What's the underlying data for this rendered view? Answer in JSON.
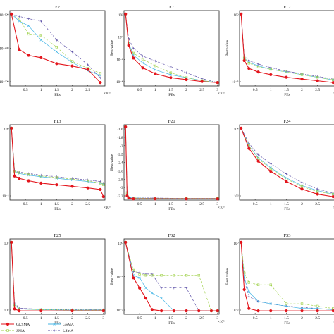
{
  "chart_data": [
    {
      "type": "line",
      "title": "F2",
      "xlabel": "FEs",
      "ylabel": "",
      "x_tick_labels": [
        "0.5",
        "1",
        "1.5",
        "2",
        "2.5"
      ],
      "x_exponent": "×10⁵",
      "y_tick_labels": [
        "10⁻¹⁰⁰",
        "10⁻²⁰⁰",
        "10⁻³⁰⁰"
      ],
      "y_log": true,
      "x": [
        0.05,
        0.3,
        0.6,
        1.0,
        1.5,
        2.0,
        2.5,
        2.9
      ],
      "series": [
        {
          "name": "GLSMA",
          "values": [
            -10,
            -160,
            -185,
            -195,
            -220,
            -230,
            -245,
            -300
          ]
        },
        {
          "name": "SMA",
          "values": [
            -10,
            -30,
            -95,
            -100,
            -150,
            -210,
            -240,
            -260
          ]
        },
        {
          "name": "GSMA",
          "values": [
            -10,
            -40,
            -60,
            -120,
            -170,
            -215,
            -250,
            -270
          ]
        },
        {
          "name": "LSMA",
          "values": [
            -10,
            -20,
            -30,
            -40,
            -120,
            -170,
            -225,
            -280
          ]
        }
      ]
    },
    {
      "type": "line",
      "title": "F7",
      "xlabel": "FEs",
      "ylabel": "Best value",
      "x_tick_labels": [
        "0.5",
        "1",
        "1.5",
        "2",
        "2.5",
        "3"
      ],
      "x_exponent": "×10⁵",
      "y_tick_labels": [
        "10²",
        "10⁰",
        "10⁻²",
        "10⁻⁴"
      ],
      "y_log": true,
      "x": [
        0.05,
        0.15,
        0.3,
        0.6,
        1.0,
        1.5,
        2.0,
        2.5,
        3.0
      ],
      "series": [
        {
          "name": "GLSMA",
          "values": [
            2,
            -1.2,
            -2.5,
            -3.5,
            -4.1,
            -4.5,
            -4.7,
            -4.9,
            -5.0
          ]
        },
        {
          "name": "SMA",
          "values": [
            2,
            -1,
            -2,
            -2.6,
            -3.3,
            -4,
            -4.5,
            -4.8,
            -5.0
          ]
        },
        {
          "name": "GSMA",
          "values": [
            2,
            -1,
            -2.2,
            -3,
            -3.7,
            -4.2,
            -4.5,
            -4.8,
            -5.0
          ]
        },
        {
          "name": "LSMA",
          "values": [
            2,
            -0.5,
            -1.5,
            -2.3,
            -2.8,
            -3.4,
            -4,
            -4.6,
            -5.0
          ]
        }
      ]
    },
    {
      "type": "line",
      "title": "F12",
      "xlabel": "FEs",
      "ylabel": "Best value",
      "x_tick_labels": [
        "0.5",
        "1",
        "1.5",
        "2",
        "2.5"
      ],
      "x_exponent": "×10⁵",
      "y_tick_labels": [
        "10⁰",
        "10⁻⁵"
      ],
      "y_log": true,
      "x": [
        0.05,
        0.15,
        0.3,
        0.6,
        1.0,
        1.5,
        2.0,
        2.5,
        3.0
      ],
      "series": [
        {
          "name": "GLSMA",
          "values": [
            1,
            -4.3,
            -5.2,
            -5.6,
            -5.9,
            -6.2,
            -6.4,
            -6.6,
            -6.8
          ]
        },
        {
          "name": "SMA",
          "values": [
            1,
            -4.0,
            -4.6,
            -5.0,
            -5.3,
            -5.6,
            -5.9,
            -6.2,
            -6.5
          ]
        },
        {
          "name": "GSMA",
          "values": [
            1,
            -4.0,
            -4.5,
            -4.9,
            -5.3,
            -5.6,
            -5.9,
            -6.2,
            -6.5
          ]
        },
        {
          "name": "LSMA",
          "values": [
            1,
            -3.8,
            -4.3,
            -4.7,
            -5.1,
            -5.5,
            -5.8,
            -6.1,
            -6.4
          ]
        }
      ]
    },
    {
      "type": "line",
      "title": "F13",
      "xlabel": "FEs",
      "ylabel": "",
      "x_tick_labels": [
        "0.5",
        "1",
        "1.5",
        "2",
        "2.5"
      ],
      "x_exponent": "×10⁵",
      "y_tick_labels": [
        "10⁰",
        "10⁻⁵"
      ],
      "y_log": true,
      "x": [
        0.05,
        0.15,
        0.3,
        0.6,
        1.0,
        1.5,
        2.0,
        2.5,
        2.9,
        3.0
      ],
      "series": [
        {
          "name": "GLSMA",
          "values": [
            1,
            -5.0,
            -5.3,
            -5.6,
            -5.9,
            -6.1,
            -6.3,
            -6.5,
            -6.7,
            -7.6
          ]
        },
        {
          "name": "SMA",
          "values": [
            1,
            -4.4,
            -4.6,
            -4.8,
            -5.0,
            -5.2,
            -5.4,
            -5.6,
            -5.9,
            -6.1
          ]
        },
        {
          "name": "GSMA",
          "values": [
            1,
            -4.4,
            -4.7,
            -4.9,
            -5.1,
            -5.3,
            -5.5,
            -5.7,
            -5.9,
            -6.0
          ]
        },
        {
          "name": "LSMA",
          "values": [
            1,
            -4.3,
            -4.5,
            -4.7,
            -4.9,
            -5.1,
            -5.3,
            -5.5,
            -5.7,
            -5.9
          ]
        }
      ]
    },
    {
      "type": "line",
      "title": "F20",
      "xlabel": "FEs",
      "ylabel": "Best value",
      "x_tick_labels": [
        "0.5",
        "1",
        "1.5",
        "2",
        "2.5",
        "3"
      ],
      "x_exponent": "×10⁵",
      "y_tick_labels": [
        "-1.6",
        "-1.8",
        "-2",
        "-2.2",
        "-2.4",
        "-2.6",
        "-2.8",
        "-3",
        "-3.2"
      ],
      "y_log": false,
      "ylim": [
        -3.25,
        -1.45
      ],
      "x": [
        0.05,
        0.1,
        0.15,
        0.3,
        1.0,
        2.0,
        3.0
      ],
      "series": [
        {
          "name": "GLSMA",
          "values": [
            -1.5,
            -3.15,
            -3.2,
            -3.22,
            -3.22,
            -3.22,
            -3.22
          ]
        },
        {
          "name": "SMA",
          "values": [
            -1.5,
            -3.1,
            -3.19,
            -3.2,
            -3.21,
            -3.21,
            -3.21
          ]
        },
        {
          "name": "GSMA",
          "values": [
            -1.5,
            -3.1,
            -3.19,
            -3.2,
            -3.21,
            -3.21,
            -3.21
          ]
        },
        {
          "name": "LSMA",
          "values": [
            -1.5,
            -3.05,
            -3.18,
            -3.2,
            -3.2,
            -3.21,
            -3.21
          ]
        }
      ]
    },
    {
      "type": "line",
      "title": "F24",
      "xlabel": "FEs",
      "ylabel": "",
      "x_tick_labels": [
        "0.5",
        "1",
        "1.5",
        "2",
        "2.5"
      ],
      "x_exponent": "×10⁵",
      "y_tick_labels": [
        "10⁴",
        "10³"
      ],
      "y_log": true,
      "x": [
        0.05,
        0.3,
        0.6,
        1.0,
        1.5,
        2.0,
        2.5,
        3.0
      ],
      "series": [
        {
          "name": "GLSMA",
          "values": [
            4.2,
            3.8,
            3.55,
            3.35,
            3.15,
            3.0,
            2.9,
            2.85
          ]
        },
        {
          "name": "SMA",
          "values": [
            4.2,
            3.85,
            3.6,
            3.4,
            3.2,
            3.05,
            2.95,
            2.9
          ]
        },
        {
          "name": "GSMA",
          "values": [
            4.2,
            3.85,
            3.62,
            3.42,
            3.22,
            3.07,
            2.97,
            2.9
          ]
        },
        {
          "name": "LSMA",
          "values": [
            4.2,
            3.9,
            3.68,
            3.5,
            3.3,
            3.13,
            3.0,
            2.92
          ]
        }
      ]
    },
    {
      "type": "line",
      "title": "F25",
      "xlabel": "FEs",
      "ylabel": "",
      "x_tick_labels": [
        "0.5",
        "1",
        "1.5",
        "2",
        "2.5",
        "3"
      ],
      "x_exponent": "",
      "y_tick_labels": [
        "10⁵",
        "10⁴"
      ],
      "y_log": true,
      "x": [
        0.05,
        0.15,
        0.3,
        1.0,
        2.0,
        3.0
      ],
      "series": [
        {
          "name": "GLSMA",
          "values": [
            5.3,
            3.6,
            3.55,
            3.55,
            3.55,
            3.55
          ]
        },
        {
          "name": "SMA",
          "values": [
            5.3,
            3.7,
            3.6,
            3.58,
            3.57,
            3.57
          ]
        },
        {
          "name": "GSMA",
          "values": [
            5.3,
            3.7,
            3.6,
            3.58,
            3.57,
            3.57
          ]
        },
        {
          "name": "LSMA",
          "values": [
            5.3,
            3.75,
            3.62,
            3.59,
            3.58,
            3.58
          ]
        }
      ]
    },
    {
      "type": "line",
      "title": "F32",
      "xlabel": "FEs",
      "ylabel": "Best value",
      "x_tick_labels": [
        "0.5",
        "1",
        "1.5",
        "2",
        "2.5",
        "3"
      ],
      "x_exponent": "×10⁵",
      "y_tick_labels": [
        "10⁰",
        "10⁻¹",
        "10⁻²"
      ],
      "y_log": true,
      "x": [
        0.05,
        0.3,
        0.5,
        0.7,
        0.9,
        1.2,
        1.6,
        2.0,
        2.4,
        2.8,
        3.0
      ],
      "series": [
        {
          "name": "GLSMA",
          "values": [
            0.3,
            -1.1,
            -1.5,
            -1.9,
            -2.35,
            -2.4,
            -2.4,
            -2.4,
            -2.4,
            -2.4,
            -2.4
          ]
        },
        {
          "name": "SMA",
          "values": [
            0.3,
            -0.8,
            -0.95,
            -1.0,
            -1.0,
            -1.0,
            -1.0,
            -1.0,
            -1.0,
            -2.4,
            -2.4
          ]
        },
        {
          "name": "GSMA",
          "values": [
            0.3,
            -1.0,
            -1.1,
            -1.5,
            -1.7,
            -1.9,
            -2.4,
            -2.4,
            -2.4,
            -2.4,
            -2.4
          ]
        },
        {
          "name": "LSMA",
          "values": [
            0.3,
            -0.85,
            -0.9,
            -0.95,
            -0.95,
            -1.5,
            -1.5,
            -1.5,
            -2.4,
            -2.4,
            -2.4
          ]
        }
      ]
    },
    {
      "type": "line",
      "title": "F33",
      "xlabel": "FEs",
      "ylabel": "Best value",
      "x_tick_labels": [
        "0.5",
        "1",
        "1.5",
        "2",
        "2.5"
      ],
      "x_exponent": "×10⁵",
      "y_tick_labels": [
        "10⁰",
        "10⁻²"
      ],
      "y_log": true,
      "x": [
        0.05,
        0.15,
        0.3,
        0.6,
        1.0,
        1.5,
        2.0,
        2.5,
        3.0
      ],
      "series": [
        {
          "name": "GLSMA",
          "values": [
            0.5,
            -1.5,
            -2.3,
            -2.4,
            -2.4,
            -2.4,
            -2.4,
            -2.4,
            -2.4
          ]
        },
        {
          "name": "SMA",
          "values": [
            0.5,
            -0.8,
            -1.2,
            -1.3,
            -1.3,
            -2.1,
            -2.1,
            -2.2,
            -2.3
          ]
        },
        {
          "name": "GSMA",
          "values": [
            0.5,
            -1.0,
            -1.6,
            -2.0,
            -2.1,
            -2.2,
            -2.3,
            -2.3,
            -2.35
          ]
        },
        {
          "name": "LSMA",
          "values": [
            0.5,
            -1.1,
            -1.8,
            -2.0,
            -2.1,
            -2.2,
            -2.25,
            -2.3,
            -2.35
          ]
        }
      ]
    }
  ],
  "legend": {
    "placement": "bottom-left",
    "items": [
      {
        "name": "GLSMA",
        "color": "#e3151c",
        "marker": "circle",
        "dash": "solid"
      },
      {
        "name": "SMA",
        "color": "#9fd14a",
        "marker": "square",
        "dash": "dash"
      },
      {
        "name": "GSMA",
        "color": "#45b6e6",
        "marker": "x",
        "dash": "solid"
      },
      {
        "name": "LSMA",
        "color": "#5a4ea6",
        "marker": "plus",
        "dash": "dashdot"
      }
    ]
  }
}
